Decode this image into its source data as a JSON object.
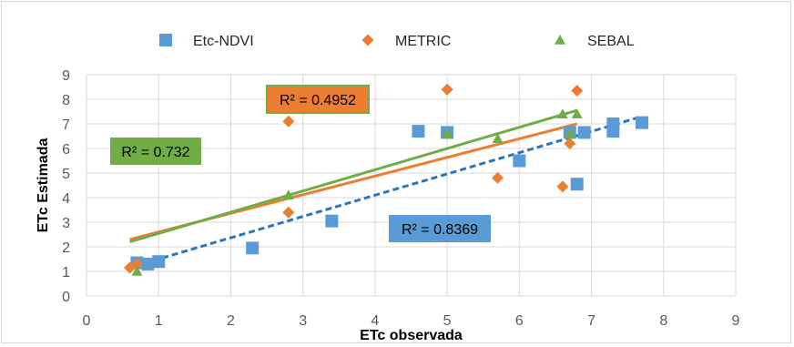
{
  "chart_data": {
    "type": "scatter",
    "title": "",
    "xlabel": "ETc observada",
    "ylabel": "ETc Estimada",
    "xlim": [
      0,
      9
    ],
    "ylim": [
      0,
      9
    ],
    "xticks": [
      0,
      1,
      2,
      3,
      4,
      5,
      6,
      7,
      8,
      9
    ],
    "yticks": [
      0,
      1,
      2,
      3,
      4,
      5,
      6,
      7,
      8,
      9
    ],
    "grid": true,
    "legend_position": "top",
    "series": [
      {
        "name": "Etc-NDVI",
        "marker": "square",
        "color": "#5b9bd5",
        "points": [
          [
            0.7,
            1.35
          ],
          [
            0.85,
            1.3
          ],
          [
            1.0,
            1.4
          ],
          [
            2.3,
            1.95
          ],
          [
            3.4,
            3.05
          ],
          [
            4.6,
            6.7
          ],
          [
            5.0,
            6.65
          ],
          [
            6.0,
            5.5
          ],
          [
            6.7,
            6.65
          ],
          [
            6.8,
            4.55
          ],
          [
            6.9,
            6.65
          ],
          [
            7.3,
            6.7
          ],
          [
            7.3,
            7.0
          ],
          [
            7.7,
            7.05
          ]
        ],
        "trendline": {
          "from": [
            0.65,
            1.2
          ],
          "to": [
            7.7,
            7.3
          ],
          "style": "dashed",
          "color": "#2e75b6"
        },
        "r2_label": "R² = 0.8369",
        "r2_box_fill": "#5b9bd5"
      },
      {
        "name": "METRIC",
        "marker": "diamond",
        "color": "#ed7d31",
        "points": [
          [
            0.6,
            1.15
          ],
          [
            0.7,
            1.3
          ],
          [
            2.8,
            7.1
          ],
          [
            2.8,
            3.4
          ],
          [
            5.0,
            8.4
          ],
          [
            5.7,
            4.8
          ],
          [
            6.6,
            4.45
          ],
          [
            6.7,
            6.2
          ],
          [
            6.8,
            8.35
          ]
        ],
        "trendline": {
          "from": [
            0.6,
            2.3
          ],
          "to": [
            6.8,
            7.0
          ],
          "style": "solid",
          "color": "#ed7d31"
        },
        "r2_label": "R² = 0.4952",
        "r2_box_fill": "#ed7d31"
      },
      {
        "name": "SEBAL",
        "marker": "triangle",
        "color": "#70ad47",
        "points": [
          [
            0.7,
            1.0
          ],
          [
            2.8,
            4.1
          ],
          [
            2.8,
            7.6
          ],
          [
            5.0,
            6.6
          ],
          [
            5.7,
            6.4
          ],
          [
            6.6,
            7.4
          ],
          [
            6.7,
            6.6
          ],
          [
            6.8,
            7.4
          ]
        ],
        "trendline": {
          "from": [
            0.6,
            2.2
          ],
          "to": [
            6.8,
            7.55
          ],
          "style": "solid",
          "color": "#70ad47"
        },
        "r2_label": "R² = 0.732",
        "r2_box_fill": "#70ad47"
      }
    ]
  }
}
